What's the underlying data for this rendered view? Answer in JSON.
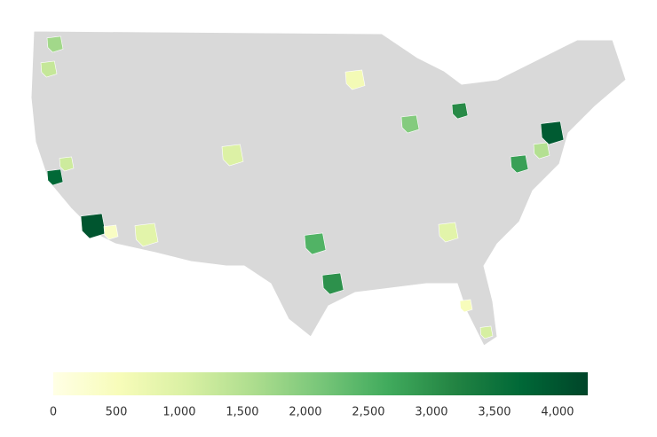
{
  "chart_data": {
    "type": "choropleth",
    "values": [
      4000,
      3700,
      3900,
      3000,
      3100,
      2800,
      2500,
      2000,
      1700,
      1300,
      1000,
      900,
      400,
      900,
      600,
      1100,
      1200,
      500,
      1500
    ],
    "colorscale": [
      "#ffffe5",
      "#f7fcb9",
      "#d9f0a3",
      "#addd8e",
      "#78c679",
      "#41ab5d",
      "#238443",
      "#006837",
      "#004529"
    ],
    "clim": [
      0,
      4240
    ],
    "cticks": [
      0,
      500,
      {
        "value": 1000,
        "label": "1,000"
      },
      {
        "value": 1500,
        "label": "1,500"
      },
      {
        "value": 2000,
        "label": "2,000"
      },
      {
        "value": 2500,
        "label": "2,500"
      },
      {
        "value": 3000,
        "label": "3,000"
      },
      {
        "value": 3500,
        "label": "3,500"
      },
      {
        "value": 4000,
        "label": "4,000"
      }
    ]
  }
}
